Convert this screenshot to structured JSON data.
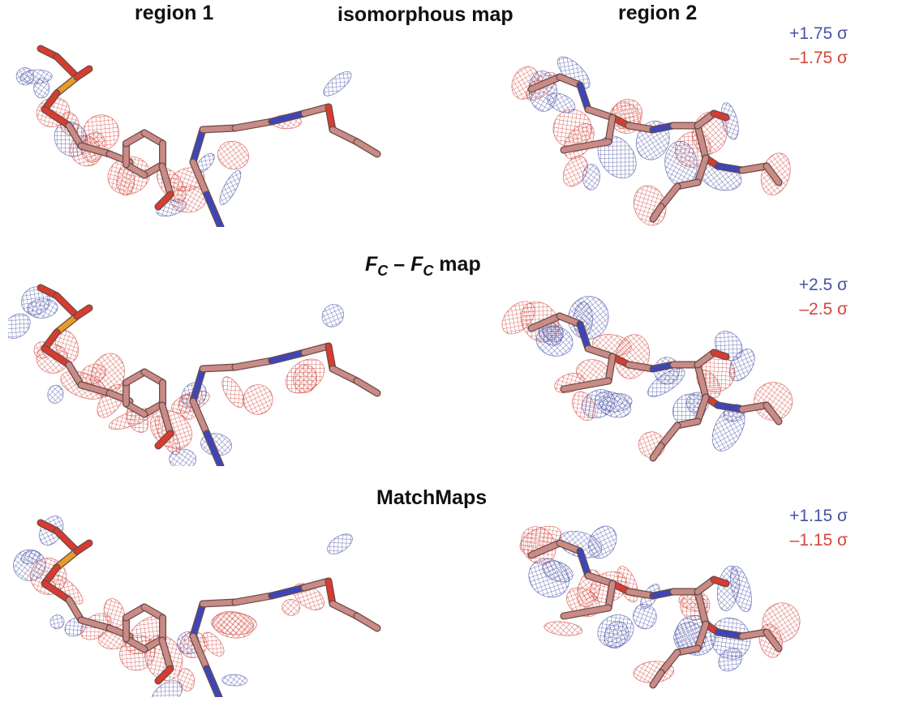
{
  "headers": {
    "region1": "region 1",
    "region2": "region 2",
    "row1_title": "isomorphous map",
    "row3_title": "MatchMaps"
  },
  "fc_title": {
    "f1": "F",
    "sub1": "C",
    "dash": " – ",
    "f2": "F",
    "sub2": "C",
    "suffix": " map"
  },
  "contours": {
    "row1": {
      "positive": "+1.75 σ",
      "negative": "–1.75 σ"
    },
    "row2": {
      "positive": "+2.5 σ",
      "negative": "–2.5 σ"
    },
    "row3": {
      "positive": "+1.15 σ",
      "negative": "–1.15 σ"
    }
  },
  "colors": {
    "positive_density": "#4a52a8",
    "negative_density": "#d4473e",
    "carbon": "#c98b86",
    "nitrogen": "#3d46b8",
    "oxygen": "#d63c30",
    "phosphorus": "#e89a2a"
  },
  "panels": [
    {
      "row": 1,
      "region": 1,
      "blue_level": 0.4,
      "red_level": 0.6
    },
    {
      "row": 1,
      "region": 2,
      "blue_level": 0.4,
      "red_level": 0.6
    },
    {
      "row": 2,
      "region": 1,
      "blue_level": 0.4,
      "red_level": 0.9
    },
    {
      "row": 2,
      "region": 2,
      "blue_level": 0.9,
      "red_level": 0.6
    },
    {
      "row": 3,
      "region": 1,
      "blue_level": 0.5,
      "red_level": 0.8
    },
    {
      "row": 3,
      "region": 2,
      "blue_level": 0.8,
      "red_level": 0.7
    }
  ]
}
